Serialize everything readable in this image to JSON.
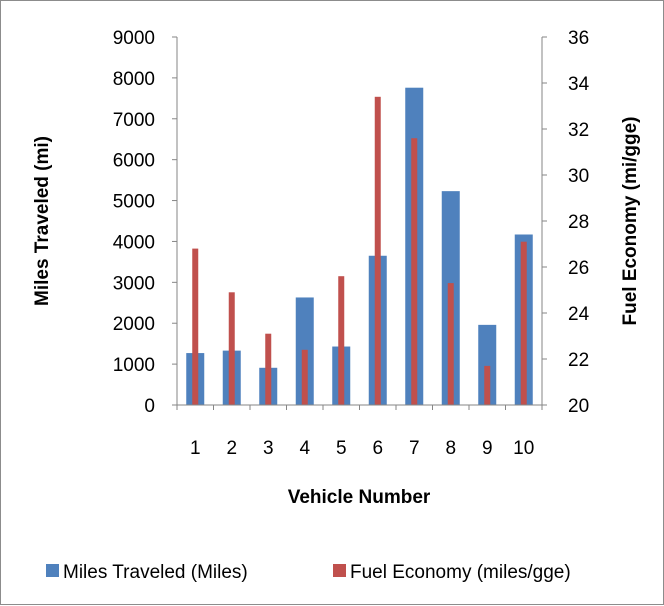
{
  "chart_data": {
    "type": "bar",
    "categories": [
      "1",
      "2",
      "3",
      "4",
      "5",
      "6",
      "7",
      "8",
      "9",
      "10"
    ],
    "series": [
      {
        "name": "Miles Traveled (Miles)",
        "axis": "left",
        "color": "#4f81bd",
        "values": [
          1270,
          1330,
          910,
          2630,
          1430,
          3650,
          7760,
          5230,
          1960,
          4170
        ]
      },
      {
        "name": "Fuel Economy (miles/gge)",
        "axis": "right",
        "color": "#c0504d",
        "values": [
          26.8,
          24.9,
          23.1,
          22.4,
          25.6,
          33.4,
          31.6,
          25.3,
          21.7,
          27.1
        ]
      }
    ],
    "xlabel": "Vehicle Number",
    "ylabel": "Miles Traveled (mi)",
    "y2label": "Fuel Economy (mi/gge)",
    "ylim": [
      0,
      9000
    ],
    "y2lim": [
      20,
      36
    ],
    "yticks": [
      "0",
      "1000",
      "2000",
      "3000",
      "4000",
      "5000",
      "6000",
      "7000",
      "8000",
      "9000"
    ],
    "y2ticks": [
      "20",
      "22",
      "24",
      "26",
      "28",
      "30",
      "32",
      "34",
      "36"
    ],
    "grid": false,
    "legend_position": "bottom"
  }
}
